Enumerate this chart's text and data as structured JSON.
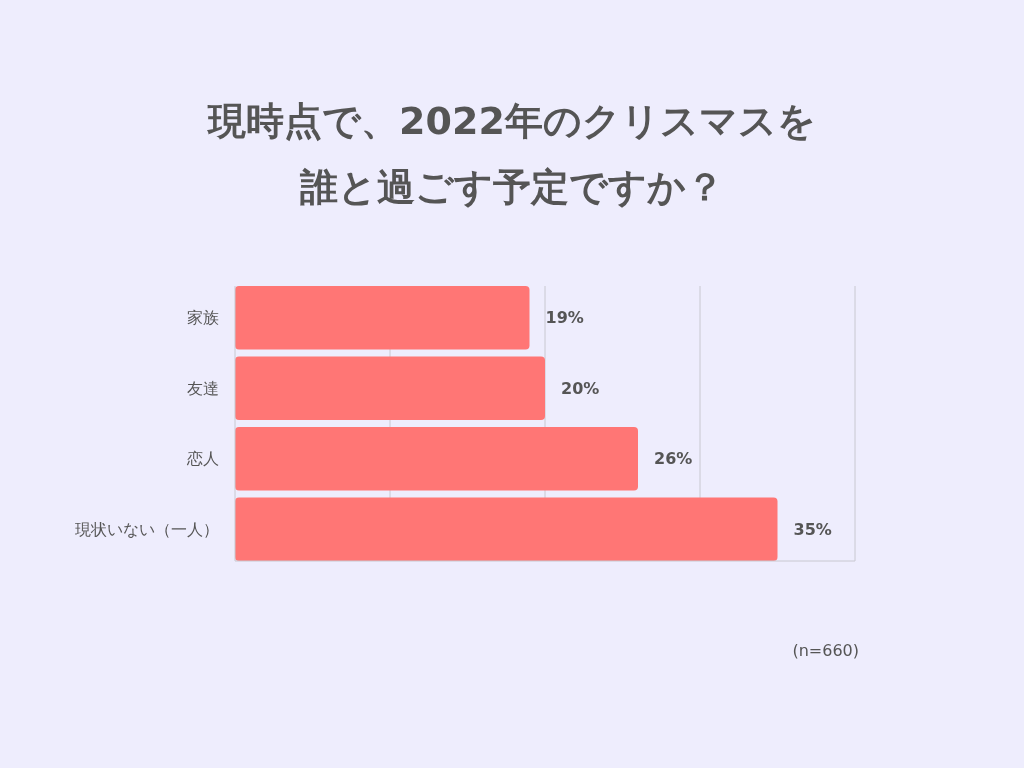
{
  "chart_data": {
    "type": "bar",
    "orientation": "horizontal",
    "title": "現時点で、2022年のクリスマスを誰と過ごす予定ですか？",
    "categories": [
      "家族",
      "友達",
      "恋人",
      "現状いない（一人）"
    ],
    "values": [
      19,
      20,
      26,
      35
    ],
    "value_labels": [
      "19%",
      "20%",
      "26%",
      "35%"
    ],
    "color": "#ff7675",
    "xlim": [
      0,
      40
    ],
    "xticks": [
      {
        "value": 10,
        "label": null
      },
      {
        "value": 20,
        "label": null
      },
      {
        "value": 30,
        "label": null
      },
      {
        "value": 40,
        "label": null
      }
    ],
    "grid": "x",
    "tick_labels": "y",
    "annotations": [
      "(n=660)"
    ]
  }
}
